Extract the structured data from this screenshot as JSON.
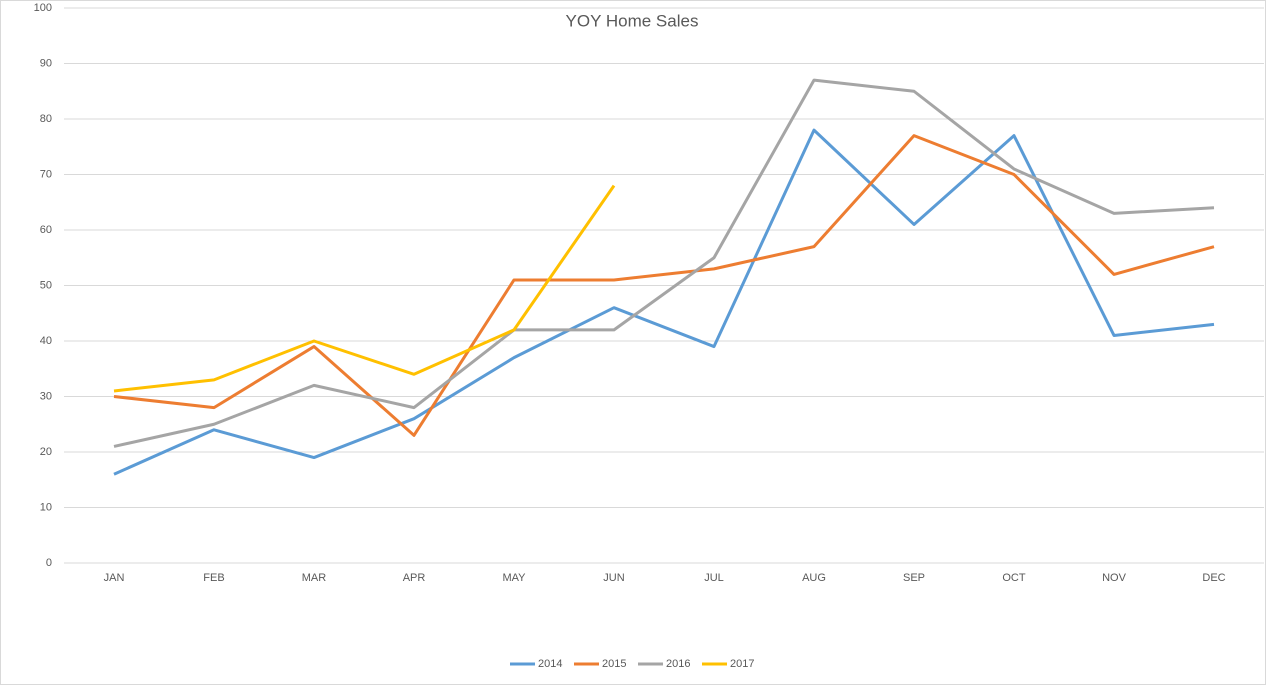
{
  "chart_data": {
    "type": "line",
    "title": "YOY Home Sales",
    "categories": [
      "JAN",
      "FEB",
      "MAR",
      "APR",
      "MAY",
      "JUN",
      "JUL",
      "AUG",
      "SEP",
      "OCT",
      "NOV",
      "DEC"
    ],
    "series": [
      {
        "name": "2014",
        "color": "#5b9bd5",
        "values": [
          16,
          24,
          19,
          26,
          37,
          46,
          39,
          78,
          61,
          77,
          41,
          43
        ]
      },
      {
        "name": "2015",
        "color": "#ed7d31",
        "values": [
          30,
          28,
          39,
          23,
          51,
          51,
          53,
          57,
          77,
          70,
          52,
          57
        ]
      },
      {
        "name": "2016",
        "color": "#a5a5a5",
        "values": [
          21,
          25,
          32,
          28,
          42,
          42,
          55,
          87,
          85,
          71,
          63,
          64
        ]
      },
      {
        "name": "2017",
        "color": "#ffc000",
        "values": [
          31,
          33,
          40,
          34,
          42,
          68,
          null,
          null,
          null,
          null,
          null,
          null
        ]
      }
    ],
    "ylim": [
      0,
      100
    ],
    "yticks": [
      0,
      10,
      20,
      30,
      40,
      50,
      60,
      70,
      80,
      90,
      100
    ],
    "grid": true,
    "legend": "bottom"
  }
}
